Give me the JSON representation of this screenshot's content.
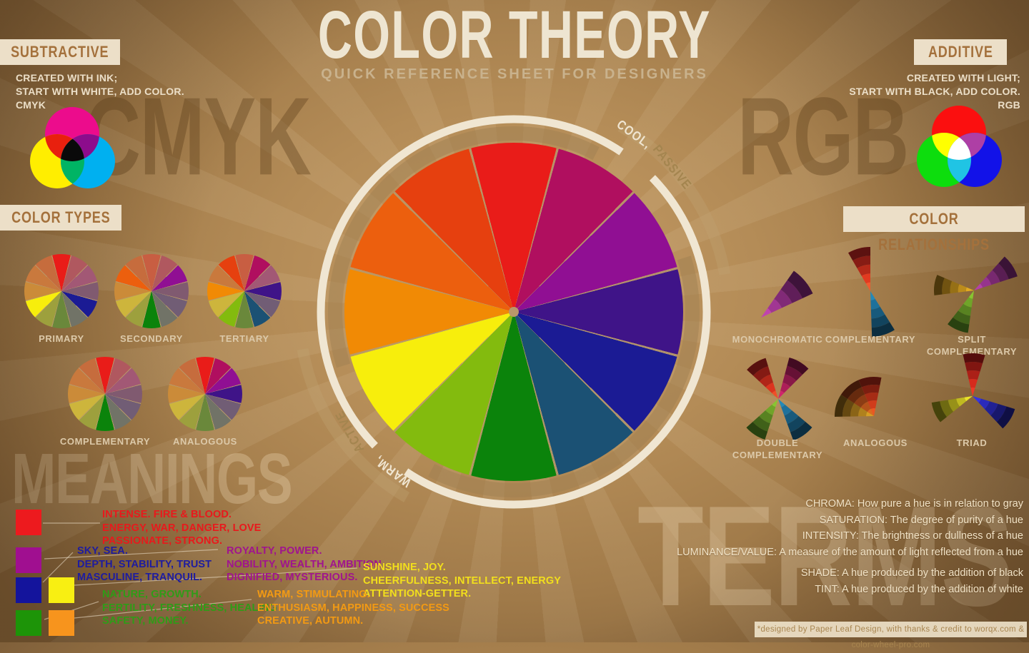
{
  "title": {
    "main": "COLOR THEORY",
    "subtitle": "QUICK REFERENCE SHEET FOR DESIGNERS"
  },
  "watermarks": {
    "cmyk": "CMYK",
    "rgb": "RGB",
    "meanings": "MEANINGS",
    "terms": "TERMS"
  },
  "subtractive": {
    "header": "SUBTRACTIVE",
    "desc_lines": [
      "CREATED WITH INK;",
      "START WITH WHITE, ADD COLOR.",
      "CMYK"
    ],
    "venn": {
      "top": "#ec0c8c",
      "left": "#ffee00",
      "right": "#00b0f0",
      "top_left": "#e8200e",
      "top_right": "#8c0c8c",
      "left_right": "#00b464",
      "center": "#0a0a0a"
    }
  },
  "additive": {
    "header": "ADDITIVE",
    "desc_lines": [
      "CREATED WITH LIGHT;",
      "START WITH BLACK, ADD COLOR.",
      "RGB"
    ],
    "venn": {
      "top": "#fb0f0f",
      "left": "#0ddd0d",
      "right": "#1212e8",
      "top_left": "#ffff00",
      "top_right": "#ae3fa5",
      "left_right": "#20c4e4",
      "center": "#ffffff"
    }
  },
  "color_types": {
    "header": "COLOR TYPES",
    "segment_order": [
      "red",
      "red-violet",
      "violet",
      "blue-violet",
      "blue",
      "blue-green",
      "green",
      "yellow-green",
      "yellow",
      "yellow-orange",
      "orange",
      "red-orange"
    ],
    "wheel_hues_vivid": [
      "#e91c19",
      "#b00f5f",
      "#900f93",
      "#3f1488",
      "#1b1b94",
      "#1b5174",
      "#0b830b",
      "#83bb0e",
      "#f7ee0c",
      "#f18a05",
      "#ec5f0e",
      "#e6400f"
    ],
    "wheel_hues_muted": [
      "#c85e42",
      "#b0585f",
      "#a25875",
      "#805a70",
      "#715d75",
      "#717367",
      "#6a883b",
      "#9da03d",
      "#cdb53c",
      "#cb8b39",
      "#c9793d",
      "#c66c3d"
    ],
    "wheels": [
      {
        "label": "PRIMARY",
        "highlight": [
          0,
          4,
          8
        ]
      },
      {
        "label": "SECONDARY",
        "highlight": [
          2,
          6,
          10
        ]
      },
      {
        "label": "TERTIARY",
        "highlight": [
          1,
          3,
          5,
          7,
          9,
          11
        ]
      },
      {
        "label": "COMPLEMENTARY",
        "highlight": [
          0,
          6
        ]
      },
      {
        "label": "ANALOGOUS",
        "highlight": [
          0,
          1,
          2,
          3
        ]
      }
    ]
  },
  "main_wheel": {
    "hues": [
      "#e91c19",
      "#b00f5f",
      "#900f93",
      "#3f1488",
      "#1b1b94",
      "#1b5174",
      "#0b830b",
      "#83bb0e",
      "#f7ee0c",
      "#f18a05",
      "#ec5f0e",
      "#e6400f"
    ],
    "arc_labels": {
      "cool": "COOL,",
      "passive": "PASSIVE",
      "warm": "WARM,",
      "active": "ACTIVE"
    }
  },
  "relationships": {
    "header": "COLOR RELATIONSHIPS",
    "diagrams": [
      {
        "label": "MONOCHROMATIC",
        "wedges": [
          {
            "dir": 50,
            "len": 80,
            "colors": [
              "#c044ae",
              "#a13693",
              "#812a77",
              "#601e59",
              "#3e133a"
            ]
          }
        ]
      },
      {
        "label": "COMPLEMENTARY",
        "wedges": [
          {
            "dir": -15,
            "len": 62,
            "colors": [
              "#f05a30",
              "#e23a20",
              "#b52a19",
              "#871c14",
              "#5c1210"
            ]
          },
          {
            "dir": 163,
            "len": 64,
            "colors": [
              "#2489b8",
              "#1e719b",
              "#185a7c",
              "#12445e",
              "#0c2e40"
            ]
          }
        ]
      },
      {
        "label": "SPLIT COMPLEMENTARY",
        "wedges": [
          {
            "dir": 57,
            "len": 64,
            "colors": [
              "#b440a9",
              "#96348d",
              "#782970",
              "#591e53",
              "#3a1336"
            ]
          },
          {
            "dir": -82,
            "len": 56,
            "colors": [
              "#e2aa22",
              "#bc8c1c",
              "#967016",
              "#715311",
              "#4b370c"
            ]
          },
          {
            "dir": 203,
            "len": 60,
            "colors": [
              "#88c531",
              "#70a429",
              "#588221",
              "#406119",
              "#294110"
            ]
          }
        ]
      },
      {
        "label": "DOUBLE COMPLEMENTARY",
        "wedges": [
          {
            "dir": -32,
            "len": 60,
            "colors": [
              "#f04e28",
              "#dc341e",
              "#b02618",
              "#841a13",
              "#58110f"
            ]
          },
          {
            "dir": 30,
            "len": 60,
            "colors": [
              "#d0256c",
              "#ad1e59",
              "#891847",
              "#661135",
              "#420b22"
            ]
          },
          {
            "dir": 145,
            "len": 62,
            "colors": [
              "#2489b8",
              "#1e719b",
              "#185a7c",
              "#12445e",
              "#0c2e40"
            ]
          },
          {
            "dir": 213,
            "len": 60,
            "colors": [
              "#88c531",
              "#70a429",
              "#588221",
              "#406119",
              "#294110"
            ]
          }
        ]
      },
      {
        "label": "ANALOGOUS",
        "fan": true,
        "wedges": [
          {
            "dir": -74,
            "len": 55,
            "colors": [
              "#d69e24",
              "#b0811d",
              "#8a6417",
              "#654811",
              "#402d0b"
            ]
          },
          {
            "dir": -40,
            "len": 55,
            "colors": [
              "#dc6a20",
              "#b4521a",
              "#8c3c14",
              "#662a0e",
              "#401909"
            ]
          },
          {
            "dir": -6,
            "len": 55,
            "colors": [
              "#ec5622",
              "#d03c1b",
              "#a62c15",
              "#7c1e10",
              "#50130b"
            ]
          }
        ]
      },
      {
        "label": "TRIAD",
        "wedges": [
          {
            "dir": 2,
            "len": 60,
            "colors": [
              "#f03826",
              "#d62a1d",
              "#ab2017",
              "#801611",
              "#550d0c"
            ]
          },
          {
            "dir": 122,
            "len": 62,
            "colors": [
              "#3434e4",
              "#2a2abc",
              "#212194",
              "#18186c",
              "#0f0f44"
            ]
          },
          {
            "dir": 246,
            "len": 58,
            "colors": [
              "#eae229",
              "#c1ba21",
              "#979119",
              "#6e6a12",
              "#45430b"
            ]
          }
        ]
      }
    ]
  },
  "meanings": {
    "entries": [
      {
        "name": "red",
        "swatch": "#ed1a1e",
        "text_color": "#e8191c",
        "lines": [
          "INTENSE. FIRE & BLOOD.",
          "ENERGY, WAR, DANGER, LOVE",
          "PASSIONATE, STRONG."
        ]
      },
      {
        "name": "blue",
        "swatch": "#14149c",
        "text_color": "#1e1ca0",
        "lines": [
          "SKY, SEA.",
          "DEPTH, STABILITY, TRUST",
          "MASCULINE, TRANQUIL."
        ]
      },
      {
        "name": "purple",
        "swatch": "#a00f90",
        "text_color": "#a0148e",
        "lines": [
          "ROYALTY, POWER.",
          "NOBILITY, WEALTH, AMBITION",
          "DIGNIFIED, MYSTERIOUS."
        ]
      },
      {
        "name": "yellow",
        "swatch": "#f8ef12",
        "text_color": "#f2df1c",
        "lines": [
          "SUNSHINE, JOY.",
          "CHEERFULNESS, INTELLECT, ENERGY",
          "ATTENTION-GETTER."
        ]
      },
      {
        "name": "green",
        "swatch": "#1d9408",
        "text_color": "#2f9c17",
        "lines": [
          "NATURE, GROWTH.",
          "FERTILITY, FRESHNESS, HEALING",
          "SAFETY, MONEY."
        ]
      },
      {
        "name": "orange",
        "swatch": "#f7941d",
        "text_color": "#f39a13",
        "lines": [
          "WARM, STIMULATING.",
          "ENTHUSIASM, HAPPINESS, SUCCESS",
          "CREATIVE, AUTUMN."
        ]
      }
    ]
  },
  "terms": {
    "lines": [
      "CHROMA: How pure a hue is in relation to gray",
      "SATURATION: The degree of purity of a hue",
      "INTENSITY: The brightness or dullness of a hue",
      "LUMINANCE/VALUE: A measure of the amount of light reflected from a hue",
      "SHADE: A hue produced by the addition of black",
      "TINT: A hue produced by the addition of white"
    ]
  },
  "footer": {
    "credit": "*designed by Paper Leaf Design, with thanks & credit to worqx.com & color-wheel-pro.com"
  }
}
